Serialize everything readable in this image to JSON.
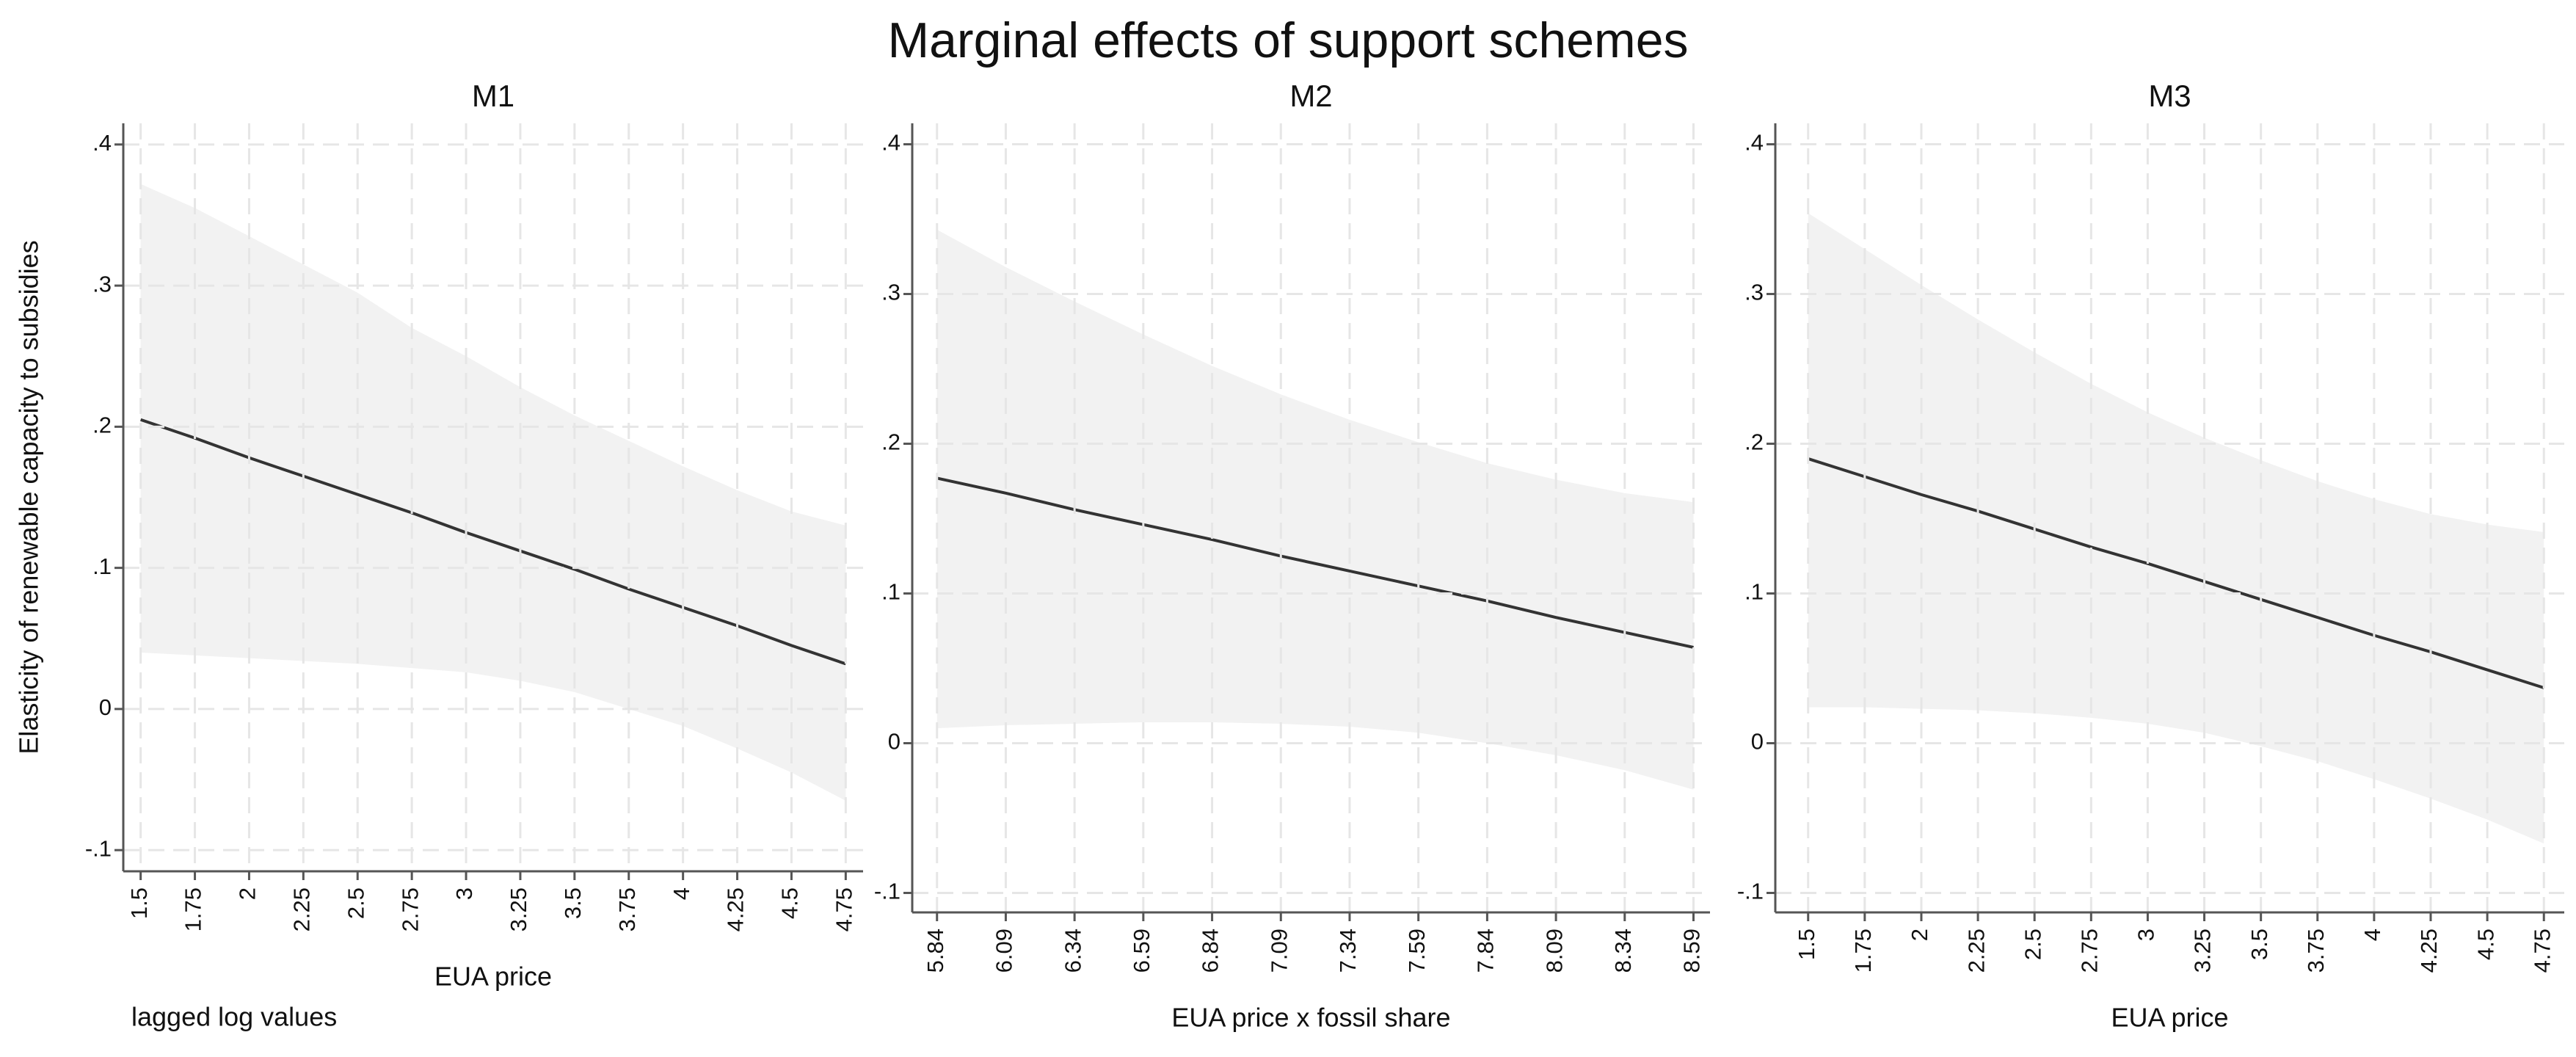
{
  "title": "Marginal effects of support schemes",
  "note": "lagged log values",
  "chart_data": [
    {
      "type": "line",
      "title": "M1",
      "xlabel": "EUA price",
      "ylabel": "Elasticity of renewable capacity to subsidies",
      "x": [
        1.5,
        1.75,
        2,
        2.25,
        2.5,
        2.75,
        3,
        3.25,
        3.5,
        3.75,
        4,
        4.25,
        4.5,
        4.75
      ],
      "values": [
        0.205,
        0.192,
        0.178,
        0.165,
        0.152,
        0.139,
        0.125,
        0.112,
        0.099,
        0.085,
        0.072,
        0.059,
        0.045,
        0.032
      ],
      "ci_upper": [
        0.372,
        0.355,
        0.335,
        0.315,
        0.295,
        0.27,
        0.25,
        0.228,
        0.208,
        0.19,
        0.172,
        0.155,
        0.14,
        0.13
      ],
      "ci_lower": [
        0.04,
        0.038,
        0.036,
        0.034,
        0.032,
        0.029,
        0.026,
        0.02,
        0.012,
        0.0,
        -0.012,
        -0.028,
        -0.045,
        -0.065
      ],
      "color": "#333333",
      "band_color": "#f2f2f2",
      "grid": true,
      "xlim": [
        1.42,
        4.83
      ],
      "xticks": [
        1.5,
        1.75,
        2,
        2.25,
        2.5,
        2.75,
        3,
        3.25,
        3.5,
        3.75,
        4,
        4.25,
        4.5,
        4.75
      ],
      "ylim": [
        -0.115,
        0.415
      ],
      "yticks": [
        {
          "value": -0.1,
          "label": "-.1"
        },
        0,
        {
          "value": 0.1,
          "label": ".1"
        },
        {
          "value": 0.2,
          "label": ".2"
        },
        {
          "value": 0.3,
          "label": ".3"
        },
        {
          "value": 0.4,
          "label": ".4"
        }
      ]
    },
    {
      "type": "line",
      "title": "M2",
      "xlabel": "EUA price x fossil share",
      "x": [
        5.84,
        6.09,
        6.34,
        6.59,
        6.84,
        7.09,
        7.34,
        7.59,
        7.84,
        8.09,
        8.34,
        8.59
      ],
      "values": [
        0.177,
        0.167,
        0.156,
        0.146,
        0.136,
        0.125,
        0.115,
        0.105,
        0.095,
        0.084,
        0.074,
        0.064
      ],
      "ci_upper": [
        0.343,
        0.318,
        0.295,
        0.273,
        0.252,
        0.233,
        0.216,
        0.201,
        0.187,
        0.176,
        0.167,
        0.161
      ],
      "ci_lower": [
        0.01,
        0.012,
        0.013,
        0.014,
        0.014,
        0.013,
        0.011,
        0.007,
        0.0,
        -0.008,
        -0.018,
        -0.031
      ],
      "color": "#333333",
      "band_color": "#f2f2f2",
      "grid": true,
      "xlim": [
        5.75,
        8.65
      ],
      "xticks": [
        5.84,
        6.09,
        6.34,
        6.59,
        6.84,
        7.09,
        7.34,
        7.59,
        7.84,
        8.09,
        8.34,
        8.59
      ],
      "ylim": [
        -0.113,
        0.414
      ],
      "yticks": [
        {
          "value": -0.1,
          "label": "-.1"
        },
        0,
        {
          "value": 0.1,
          "label": ".1"
        },
        {
          "value": 0.2,
          "label": ".2"
        },
        {
          "value": 0.3,
          "label": ".3"
        },
        {
          "value": 0.4,
          "label": ".4"
        }
      ]
    },
    {
      "type": "line",
      "title": "M3",
      "xlabel": "EUA price",
      "x": [
        1.5,
        1.75,
        2,
        2.25,
        2.5,
        2.75,
        3,
        3.25,
        3.5,
        3.75,
        4,
        4.25,
        4.5,
        4.75
      ],
      "values": [
        0.19,
        0.178,
        0.166,
        0.155,
        0.143,
        0.131,
        0.12,
        0.108,
        0.096,
        0.084,
        0.072,
        0.061,
        0.049,
        0.037
      ],
      "ci_upper": [
        0.354,
        0.33,
        0.306,
        0.283,
        0.261,
        0.24,
        0.221,
        0.204,
        0.189,
        0.175,
        0.163,
        0.153,
        0.146,
        0.141
      ],
      "ci_lower": [
        0.024,
        0.024,
        0.023,
        0.022,
        0.02,
        0.017,
        0.013,
        0.007,
        -0.002,
        -0.012,
        -0.024,
        -0.037,
        -0.051,
        -0.067
      ],
      "color": "#333333",
      "band_color": "#f2f2f2",
      "grid": true,
      "xlim": [
        1.355,
        4.84
      ],
      "xticks": [
        1.5,
        1.75,
        2,
        2.25,
        2.5,
        2.75,
        3,
        3.25,
        3.5,
        3.75,
        4,
        4.25,
        4.5,
        4.75
      ],
      "ylim": [
        -0.113,
        0.414
      ],
      "yticks": [
        {
          "value": -0.1,
          "label": "-.1"
        },
        0,
        {
          "value": 0.1,
          "label": ".1"
        },
        {
          "value": 0.2,
          "label": ".2"
        },
        {
          "value": 0.3,
          "label": ".3"
        },
        {
          "value": 0.4,
          "label": ".4"
        }
      ]
    }
  ]
}
